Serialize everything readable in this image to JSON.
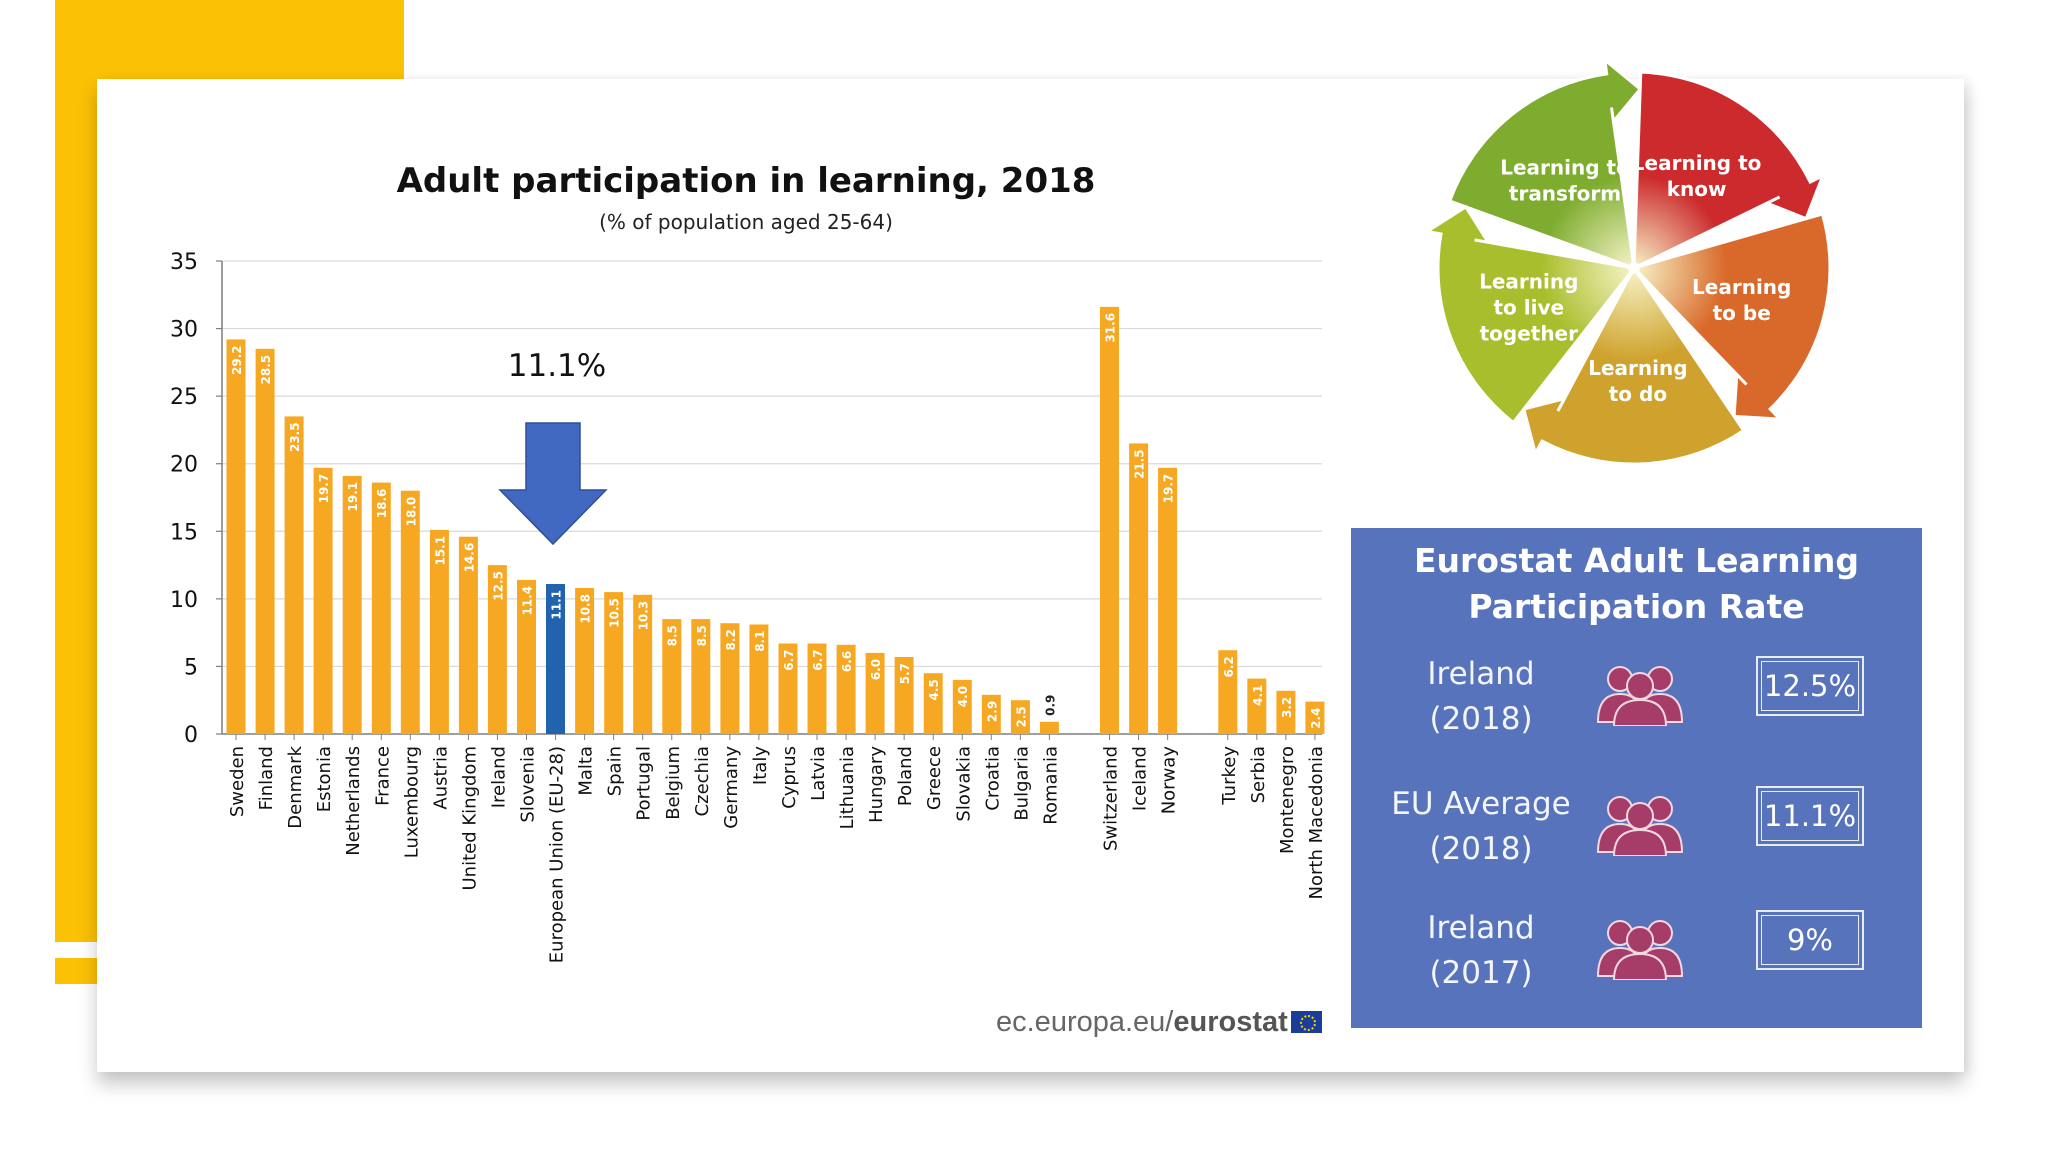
{
  "chart_data": {
    "type": "bar",
    "title": "Adult participation in learning, 2018",
    "subtitle": "(% of population aged 25-64)",
    "ylim": [
      0,
      35
    ],
    "yticks": [
      0,
      5,
      10,
      15,
      20,
      25,
      30,
      35
    ],
    "grid": true,
    "groups": [
      {
        "categories": [
          "Sweden",
          "Finland",
          "Denmark",
          "Estonia",
          "Netherlands",
          "France",
          "Luxembourg",
          "Austria",
          "United Kingdom",
          "Ireland",
          "Slovenia",
          "European Union (EU-28)",
          "Malta",
          "Spain",
          "Portugal",
          "Belgium",
          "Czechia",
          "Germany",
          "Italy",
          "Cyprus",
          "Latvia",
          "Lithuania",
          "Hungary",
          "Poland",
          "Greece",
          "Slovakia",
          "Croatia",
          "Bulgaria",
          "Romania"
        ],
        "values": [
          29.2,
          28.5,
          23.5,
          19.7,
          19.1,
          18.6,
          18.0,
          15.1,
          14.6,
          12.5,
          11.4,
          11.1,
          10.8,
          10.5,
          10.3,
          8.5,
          8.5,
          8.2,
          8.1,
          6.7,
          6.7,
          6.6,
          6.0,
          5.7,
          4.5,
          4.0,
          2.9,
          2.5,
          0.9
        ],
        "labels": [
          "29.2",
          "28.5",
          "23.5",
          "19.7",
          "19.1",
          "18.6",
          "18.0",
          "15.1",
          "14.6",
          "12.5",
          "11.4",
          "11.1",
          "10.8",
          "10.5",
          "10.3",
          "8.5",
          "8.5",
          "8.2",
          "8.1",
          "6.7",
          "6.7",
          "6.6",
          "6.0",
          "5.7",
          "4.5",
          "4.0",
          "2.9",
          "2.5",
          "0.9"
        ]
      },
      {
        "categories": [
          "Switzerland",
          "Iceland",
          "Norway"
        ],
        "values": [
          31.6,
          21.5,
          19.7
        ],
        "labels": [
          "31.6",
          "21.5",
          "19.7"
        ]
      },
      {
        "categories": [
          "Turkey",
          "Serbia",
          "Montenegro",
          "North Macedonia"
        ],
        "values": [
          6.2,
          4.1,
          3.2,
          2.4
        ],
        "labels": [
          "6.2",
          "4.1",
          "3.2",
          "2.4"
        ]
      }
    ],
    "highlight_category": "European Union (EU-28)",
    "annotation": "11.1%",
    "colors": {
      "bar": "#f7a823",
      "highlight": "#2263b0",
      "arrow": "#4169c2",
      "grid": "#d9d9d9"
    }
  },
  "source": {
    "prefix": "ec.europa.eu/",
    "brand": "eurostat"
  },
  "wheel": {
    "segments": [
      {
        "label": "Learning to transform",
        "lines": [
          "Learning to",
          "transform"
        ],
        "color": "#7dac2e"
      },
      {
        "label": "Learning to know",
        "lines": [
          "Learning to",
          "know"
        ],
        "color": "#cc2a2d"
      },
      {
        "label": "Learning to be",
        "lines": [
          "Learning",
          "to be"
        ],
        "color": "#d9692a"
      },
      {
        "label": "Learning to do",
        "lines": [
          "Learning",
          "to do"
        ],
        "color": "#cfa22d"
      },
      {
        "label": "Learning to live together",
        "lines": [
          "Learning",
          "to live",
          "together"
        ],
        "color": "#a9be2c"
      }
    ]
  },
  "info_panel": {
    "title_line1": "Eurostat Adult Learning",
    "title_line2": "Participation Rate",
    "rows": [
      {
        "line1": "Ireland",
        "line2": "(2018)",
        "value": "12.5%"
      },
      {
        "line1": "EU Average",
        "line2": "(2018)",
        "value": "11.1%"
      },
      {
        "line1": "Ireland",
        "line2": "(2017)",
        "value": "9%"
      }
    ],
    "icon": "people-group-icon",
    "icon_color": "#a63c68"
  }
}
